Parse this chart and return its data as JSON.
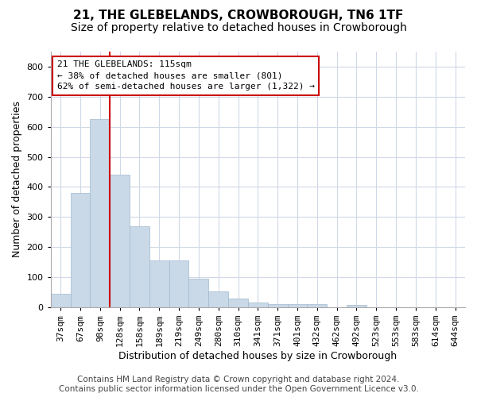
{
  "title": "21, THE GLEBELANDS, CROWBOROUGH, TN6 1TF",
  "subtitle": "Size of property relative to detached houses in Crowborough",
  "xlabel": "Distribution of detached houses by size in Crowborough",
  "ylabel": "Number of detached properties",
  "bins": [
    "37sqm",
    "67sqm",
    "98sqm",
    "128sqm",
    "158sqm",
    "189sqm",
    "219sqm",
    "249sqm",
    "280sqm",
    "310sqm",
    "341sqm",
    "371sqm",
    "401sqm",
    "432sqm",
    "462sqm",
    "492sqm",
    "523sqm",
    "553sqm",
    "583sqm",
    "614sqm",
    "644sqm"
  ],
  "values": [
    45,
    380,
    625,
    440,
    270,
    155,
    155,
    95,
    52,
    28,
    16,
    11,
    11,
    10,
    0,
    8,
    0,
    0,
    0,
    0,
    0
  ],
  "bar_color": "#c9d9e8",
  "bar_edge_color": "#a0b8cc",
  "vline_x": 2.5,
  "vline_color": "#cc0000",
  "annotation_text": "21 THE GLEBELANDS: 115sqm\n← 38% of detached houses are smaller (801)\n62% of semi-detached houses are larger (1,322) →",
  "annotation_box_color": "#ffffff",
  "annotation_box_edge_color": "#cc0000",
  "ylim": [
    0,
    850
  ],
  "yticks": [
    0,
    100,
    200,
    300,
    400,
    500,
    600,
    700,
    800
  ],
  "footer_line1": "Contains HM Land Registry data © Crown copyright and database right 2024.",
  "footer_line2": "Contains public sector information licensed under the Open Government Licence v3.0.",
  "bg_color": "#ffffff",
  "grid_color": "#d0d8e8",
  "title_fontsize": 11,
  "subtitle_fontsize": 10,
  "axis_label_fontsize": 9,
  "tick_fontsize": 8,
  "footer_fontsize": 7.5
}
